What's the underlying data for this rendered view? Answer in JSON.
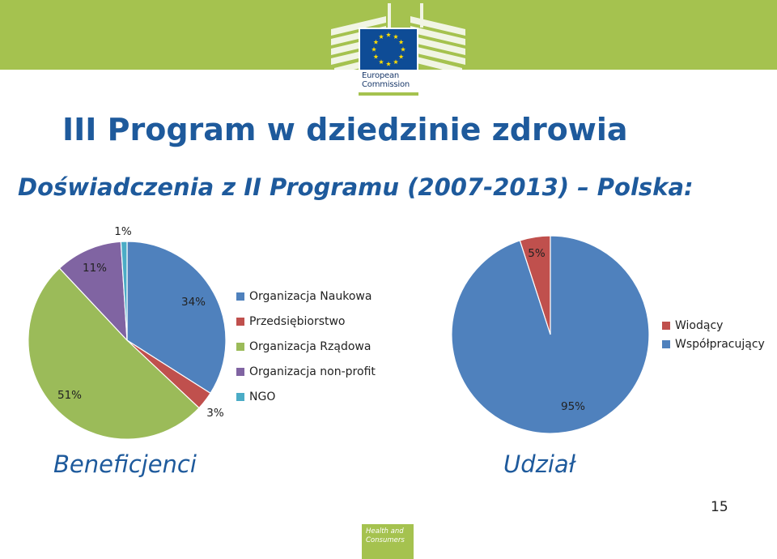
{
  "header": {
    "logo_line1": "European",
    "logo_line2": "Commission",
    "band_color": "#a5c24f",
    "logo_icon": "eu-flag-icon"
  },
  "title": "III Program w dziedzinie zdrowia",
  "subtitle": "Doświadczenia z II Programu (2007-2013) – Polska:",
  "chart_data": [
    {
      "type": "pie",
      "caption": "Beneficjenci",
      "legend_placement": "right",
      "slices": [
        {
          "label": "Organizacja Naukowa",
          "value": 34,
          "data_label": "34%",
          "color": "#4f81bd"
        },
        {
          "label": "Przedsiębiorstwo",
          "value": 3,
          "data_label": "3%",
          "color": "#c0504d"
        },
        {
          "label": "Organizacja Rządowa",
          "value": 51,
          "data_label": "51%",
          "color": "#9bbb59"
        },
        {
          "label": "Organizacja non-profit",
          "value": 11,
          "data_label": "11%",
          "color": "#8064a2"
        },
        {
          "label": "NGO",
          "value": 1,
          "data_label": "1%",
          "color": "#4bacc6"
        }
      ]
    },
    {
      "type": "pie",
      "caption": "Udział",
      "legend_placement": "right",
      "slices": [
        {
          "label": "Wiodący",
          "value": 5,
          "data_label": "5%",
          "color": "#c0504d"
        },
        {
          "label": "Współpracujący",
          "value": 95,
          "data_label": "95%",
          "color": "#4f81bd"
        }
      ]
    }
  ],
  "footer": {
    "page_number": "15",
    "badge_line1": "Health and",
    "badge_line2": "Consumers"
  }
}
